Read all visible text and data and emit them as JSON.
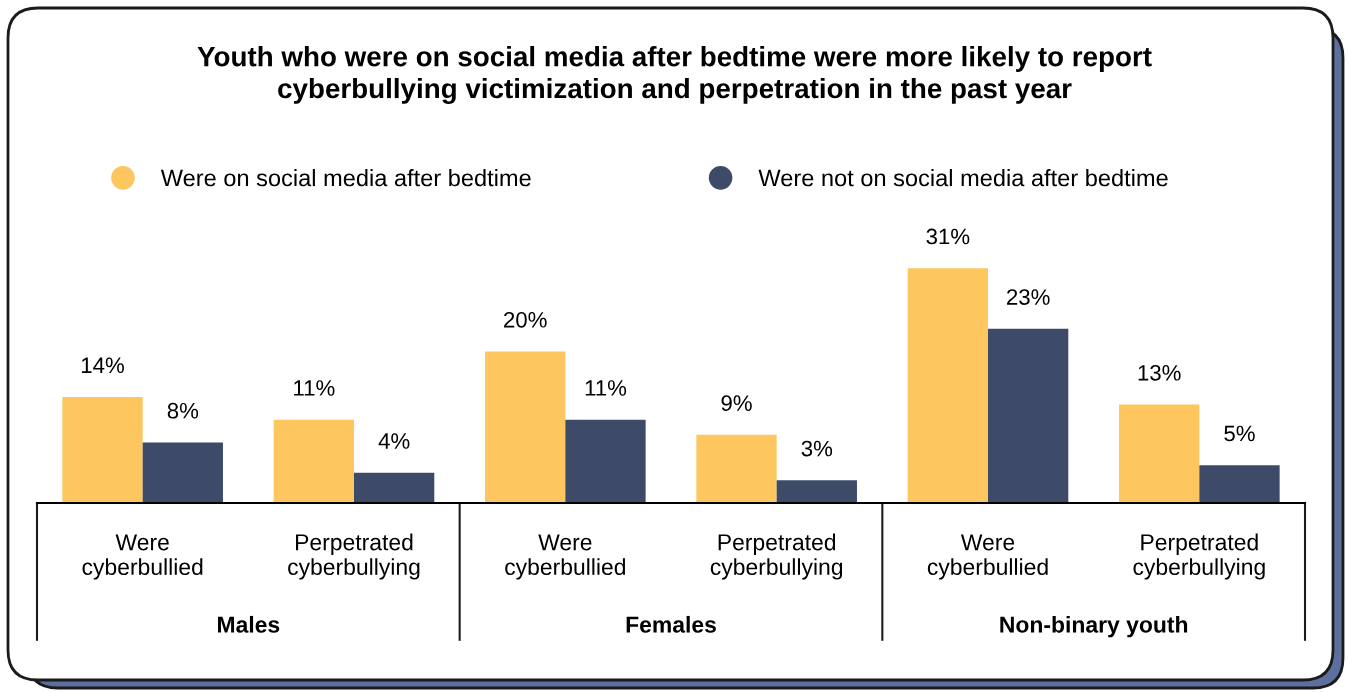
{
  "chart_data": {
    "type": "bar",
    "title": "Youth who were on social media after bedtime were more likely to report\ncyberbullying victimization and perpetration in the past year",
    "categories": [
      "Were\ncyberbullied",
      "Perpetrated\ncyberbullying",
      "Were\ncyberbullied",
      "Perpetrated\ncyberbullying",
      "Were\ncyberbullied",
      "Perpetrated\ncyberbullying"
    ],
    "series": [
      {
        "name": "Were on social media after bedtime",
        "color": "#fdc65e",
        "values": [
          14,
          11,
          20,
          9,
          31,
          13
        ],
        "value_labels": [
          "14%",
          "11%",
          "20%",
          "9%",
          "31%",
          "13%"
        ]
      },
      {
        "name": "Were not on social media after bedtime",
        "color": "#3d4b69",
        "values": [
          8,
          4,
          11,
          3,
          23,
          5
        ],
        "value_labels": [
          "8%",
          "4%",
          "11%",
          "3%",
          "23%",
          "5%"
        ]
      }
    ],
    "annotations": [
      "Males",
      "Females",
      "Non-binary youth"
    ],
    "legend": "top",
    "grid": false
  }
}
